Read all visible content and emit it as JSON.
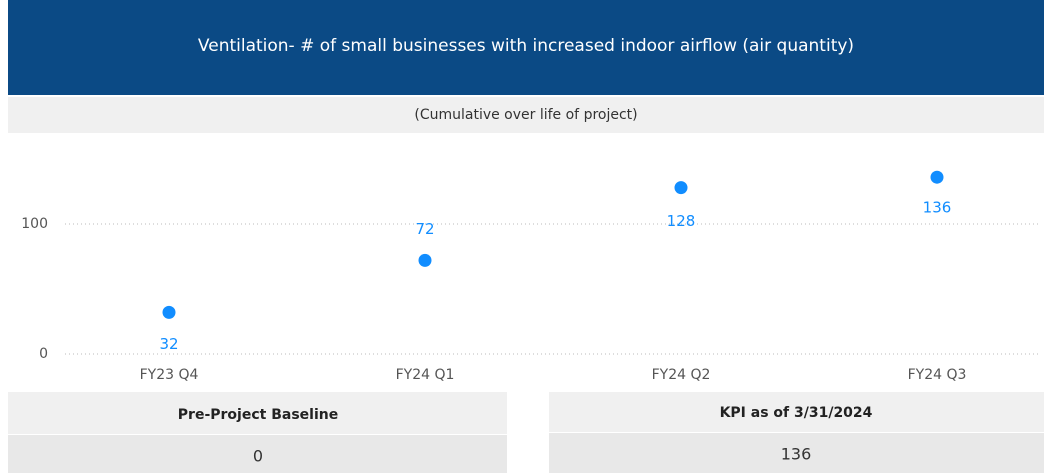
{
  "header": {
    "title": "Ventilation- # of small businesses with increased indoor airflow (air quantity)",
    "subtitle": "(Cumulative over life of project)"
  },
  "chart_data": {
    "type": "scatter",
    "categories": [
      "FY23 Q4",
      "FY24 Q1",
      "FY24 Q2",
      "FY24 Q3"
    ],
    "values": [
      32,
      72,
      128,
      136
    ],
    "color": "#118dff",
    "ylim": [
      0,
      160
    ],
    "yticks": [
      0,
      100
    ],
    "grid": true
  },
  "cards": [
    {
      "label": "Pre-Project Baseline",
      "value": 0
    },
    {
      "label": "KPI as of 3/31/2024",
      "value": 136
    }
  ]
}
